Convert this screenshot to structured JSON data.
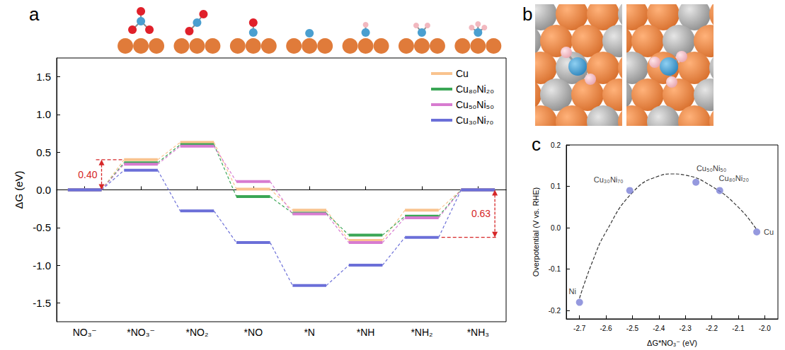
{
  "chart_data": [
    {
      "panel": "a",
      "type": "levels",
      "categories": [
        "NO₃⁻",
        "*NO₃⁻",
        "*NO₂",
        "*NO",
        "*N",
        "*NH",
        "*NH₂",
        "*NH₃"
      ],
      "series": [
        {
          "name": "Cu",
          "color": "#f9c38e",
          "values": [
            0,
            0.4,
            0.63,
            0.01,
            -0.27,
            -0.67,
            -0.27,
            0
          ]
        },
        {
          "name": "Cu₈₀Ni₂₀",
          "color": "#3aa655",
          "values": [
            0,
            0.36,
            0.6,
            -0.09,
            -0.31,
            -0.6,
            -0.35,
            0
          ]
        },
        {
          "name": "Cu₅₀Ni₅₀",
          "color": "#d77bd0",
          "values": [
            0,
            0.34,
            0.58,
            0.11,
            -0.32,
            -0.7,
            -0.37,
            0
          ]
        },
        {
          "name": "Cu₃₀Ni₇₀",
          "color": "#6b6fd8",
          "values": [
            0,
            0.26,
            -0.28,
            -0.7,
            -1.27,
            -1.0,
            -0.63,
            0
          ]
        }
      ],
      "y_label": "ΔG (eV)",
      "ylim": [
        -1.75,
        1.75
      ],
      "yticks": [
        -1.5,
        {
          "value": -1,
          "label": "-1.0"
        },
        -0.5,
        {
          "value": 0,
          "label": "0.0"
        },
        0.5,
        {
          "value": 1,
          "label": "1.0"
        },
        1.5
      ],
      "legend": "upper right",
      "grid": false,
      "line_style": "dashed",
      "annotations": [
        {
          "text": "0.40",
          "categories": [
            "NO₃⁻",
            "*NO₃⁻"
          ],
          "from": 0,
          "to": 0.4,
          "color": "#d62728"
        },
        {
          "text": "0.63",
          "categories": [
            "*NH₂",
            "*NH₃"
          ],
          "from": -0.63,
          "to": 0,
          "color": "#d62728"
        }
      ]
    },
    {
      "panel": "c",
      "type": "scatter",
      "x": [
        -2.7,
        -2.51,
        -2.26,
        -2.17,
        -2.03
      ],
      "values": [
        -0.18,
        0.09,
        0.11,
        0.09,
        -0.01
      ],
      "point_labels": [
        "Ni",
        "Cu₃₀Ni₇₀",
        "Cu₅₀Ni₅₀",
        "Cu₈₀Ni₂₀",
        "Cu"
      ],
      "color": "#7b7fd6",
      "marker": "circle",
      "fit": {
        "x": [
          -2.7,
          -2.65,
          -2.6,
          -2.5,
          -2.4,
          -2.35,
          -2.3,
          -2.2,
          -2.1,
          -2.03
        ],
        "values": [
          -0.17,
          -0.08,
          -0.01,
          0.085,
          0.125,
          0.13,
          0.127,
          0.1,
          0.05,
          -0.005
        ],
        "line_style": "dashed",
        "color": "#333333"
      },
      "x_label": "ΔG*NO₃⁻ (eV)",
      "y_label": "Overpotential (V vs. RHE)",
      "xlim": [
        -2.75,
        -1.95
      ],
      "xticks": [
        -2.7,
        -2.6,
        -2.5,
        -2.4,
        -2.3,
        -2.2,
        -2.1,
        {
          "value": -2,
          "label": "-2.0"
        }
      ],
      "ylim": [
        -0.22,
        0.2
      ],
      "yticks": [
        -0.2,
        -0.1,
        {
          "value": 0,
          "label": "0.0"
        },
        0.1,
        0.2
      ],
      "grid": false
    }
  ],
  "diagram": {
    "panel": "b"
  }
}
